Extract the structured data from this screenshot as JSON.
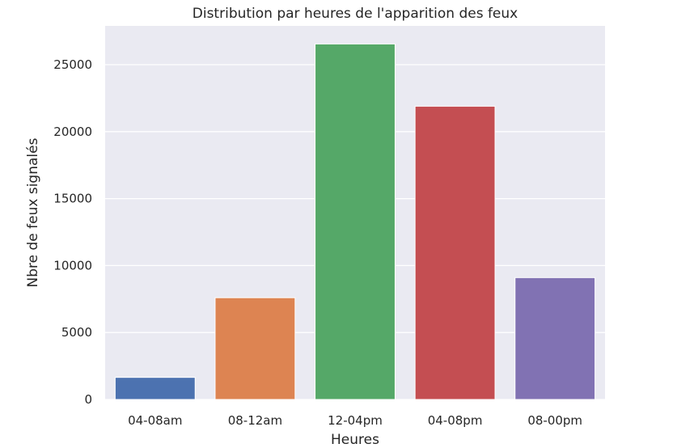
{
  "chart_data": {
    "type": "bar",
    "title": "Distribution par heures de l'apparition des feux",
    "xlabel": "Heures",
    "ylabel": "Nbre de feux signalés",
    "categories": [
      "04-08am",
      "08-12am",
      "12-04pm",
      "04-08pm",
      "08-00pm"
    ],
    "values": [
      1650,
      7600,
      26550,
      21900,
      9100
    ],
    "colors": [
      "#4c72b0",
      "#dd8452",
      "#55a868",
      "#c44e52",
      "#8172b3"
    ],
    "yticks": [
      0,
      5000,
      10000,
      15000,
      20000,
      25000
    ],
    "ylim": [
      0,
      27900
    ],
    "grid": true,
    "background": "#eaeaf2",
    "legend": "none"
  }
}
